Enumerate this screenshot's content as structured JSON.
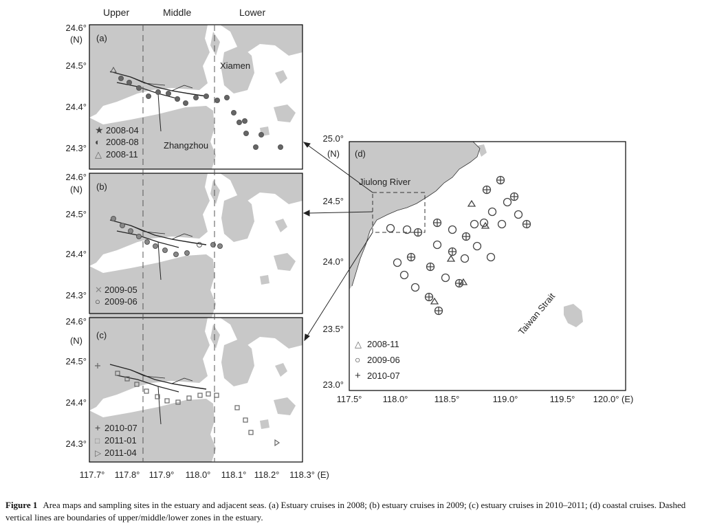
{
  "zones": [
    "Upper",
    "Middle",
    "Lower"
  ],
  "panel_a": {
    "label": "(a)",
    "places": [
      "Xiamen",
      "Zhangzhou"
    ],
    "legend": [
      "2008-04",
      "2008-08",
      "2008-11"
    ]
  },
  "panel_b": {
    "label": "(b)",
    "legend": [
      "2009-05",
      "2009-06"
    ]
  },
  "panel_c": {
    "label": "(c)",
    "legend": [
      "2010-07",
      "2011-01",
      "2011-04"
    ]
  },
  "panel_d": {
    "label": "(d)",
    "places": [
      "Jiulong River",
      "Taiwan Strait"
    ],
    "legend": [
      "2008-11",
      "2009-06",
      "2010-07"
    ]
  },
  "estuary_axes": {
    "lat_ticks": [
      "24.6°",
      "24.5°",
      "24.4°",
      "24.3°"
    ],
    "lat_unit": "(N)",
    "lon_ticks": [
      "117.7°",
      "117.8°",
      "117.9°",
      "118.0°",
      "118.1°",
      "118.2°",
      "118.3° (E)"
    ]
  },
  "coastal_axes": {
    "lat_ticks": [
      "25.0°",
      "24.5°",
      "24.0°",
      "23.5°",
      "23.0°"
    ],
    "lat_unit": "(N)",
    "lon_ticks": [
      "117.5°",
      "118.0°",
      "118.5°",
      "119.0°",
      "119.5°",
      "120.0° (E)"
    ]
  },
  "caption": {
    "title": "Figure 1",
    "text": "Area maps and sampling sites in the estuary and adjacent seas. (a) Estuary cruises in 2008; (b) estuary cruises in 2009; (c) estuary cruises in 2010–2011; (d) coastal cruises. Dashed vertical lines are boundaries of upper/middle/lower zones in the estuary."
  },
  "colors": {
    "land": "#c8c8c8",
    "frame": "#000000",
    "marker": "#555555"
  }
}
